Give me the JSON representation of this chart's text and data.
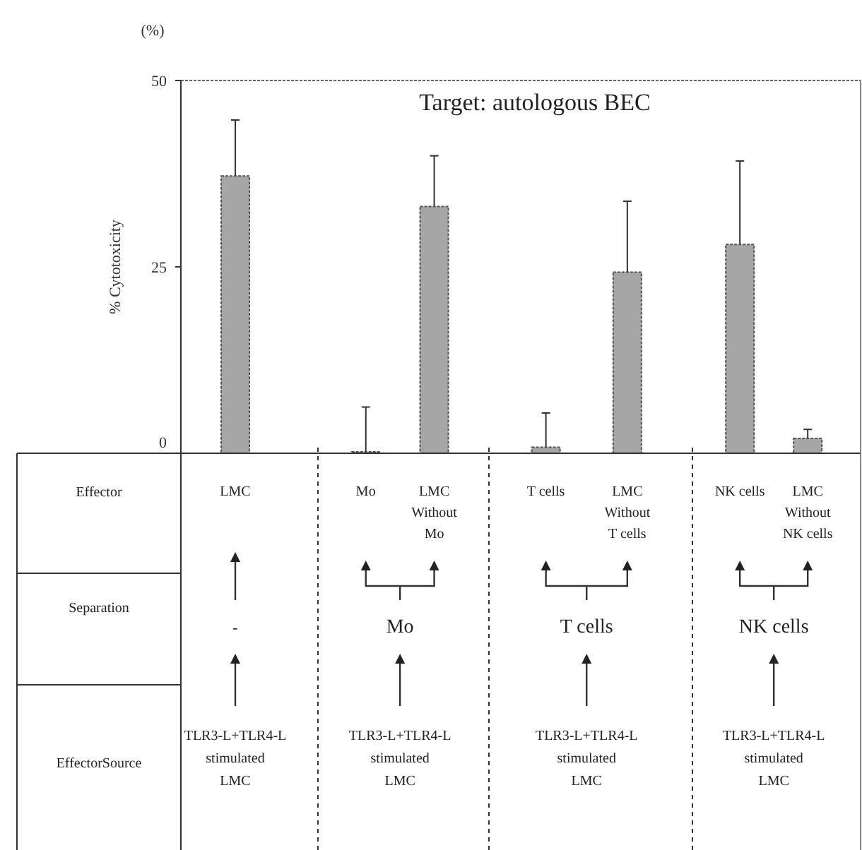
{
  "chart_data": {
    "type": "bar",
    "title": "Target: autologous BEC",
    "ylabel": "% Cytotoxicity",
    "categories": [
      "LMC",
      "Mo",
      "LMC\nWithout\nMo",
      "T cells",
      "LMC\nWithout\nT cells",
      "NK cells",
      "LMC\nWithout\nNK cells"
    ],
    "values": [
      37.2,
      0.2,
      33.1,
      0.8,
      24.3,
      28.0,
      2.0
    ],
    "errors": [
      [
        37.2,
        44.7
      ],
      [
        0.2,
        6.2
      ],
      [
        33.1,
        39.9
      ],
      [
        0.8,
        5.4
      ],
      [
        24.3,
        33.8
      ],
      [
        28.0,
        39.2
      ],
      [
        2.0,
        3.2
      ]
    ],
    "color": "#a6a6a6",
    "ylim": [
      0,
      50
    ],
    "yticks": [
      0,
      25,
      50
    ],
    "annotations": [
      "(%)",
      "Effector",
      "Separation",
      "EffectorSource",
      "-",
      "Mo",
      "T cells",
      "NK cells",
      "TLR3-L+TLR4-L\nstimulated\nLMC",
      "TLR3-L+TLR4-L\nstimulated\nLMC",
      "TLR3-L+TLR4-L\nstimulated\nLMC",
      "TLR3-L+TLR4-L\nstimulated\nLMC"
    ]
  }
}
